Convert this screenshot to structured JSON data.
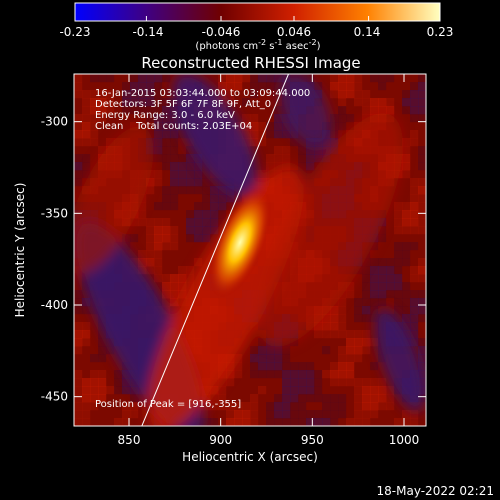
{
  "chart_data": {
    "type": "heatmap",
    "title": "Reconstructed RHESSI Image",
    "xlabel": "Heliocentric X (arcsec)",
    "ylabel": "Heliocentric Y (arcsec)",
    "xlim": [
      820,
      1012
    ],
    "ylim": [
      -466,
      -274
    ],
    "x_ticks": [
      "850",
      "900",
      "950",
      "1000"
    ],
    "x_tick_values": [
      850,
      900,
      950,
      1000
    ],
    "y_ticks": [
      "-300",
      "-350",
      "-400",
      "-450"
    ],
    "y_tick_values": [
      -300,
      -350,
      -400,
      -450
    ],
    "colorbar": {
      "range": [
        -0.23,
        0.23
      ],
      "tick_labels": [
        "-0.23",
        "-0.14",
        "-0.046",
        "0.046",
        "0.14",
        "0.23"
      ],
      "tick_values": [
        -0.23,
        -0.14,
        -0.046,
        0.046,
        0.14,
        0.23
      ],
      "unit_label": "(photons cm",
      "unit_exp1": "-2",
      "unit_mid": " s",
      "unit_exp2": "-1",
      "unit_mid2": " asec",
      "unit_exp3": "-2",
      "unit_end": ")",
      "colors": [
        "#0000ff",
        "#400080",
        "#700000",
        "#d02000",
        "#ff8000",
        "#ffffc0"
      ]
    },
    "info_lines": [
      "16-Jan-2015 03:03:44.000 to 03:09:44.000",
      "Detectors: 3F 5F 6F 7F 8F 9F, Att_0",
      "Energy Range: 3.0 - 6.0 keV",
      "Clean    Total counts: 2.03E+04"
    ],
    "peak_label": "Position of Peak = [916,-355]",
    "peak": {
      "x": 916,
      "y": -355
    },
    "limb_line": [
      {
        "x": 857,
        "y": -466
      },
      {
        "x": 937,
        "y": -274
      }
    ],
    "peak_color": "#ffff90"
  },
  "footer": {
    "timestamp": "18-May-2022 02:21"
  }
}
